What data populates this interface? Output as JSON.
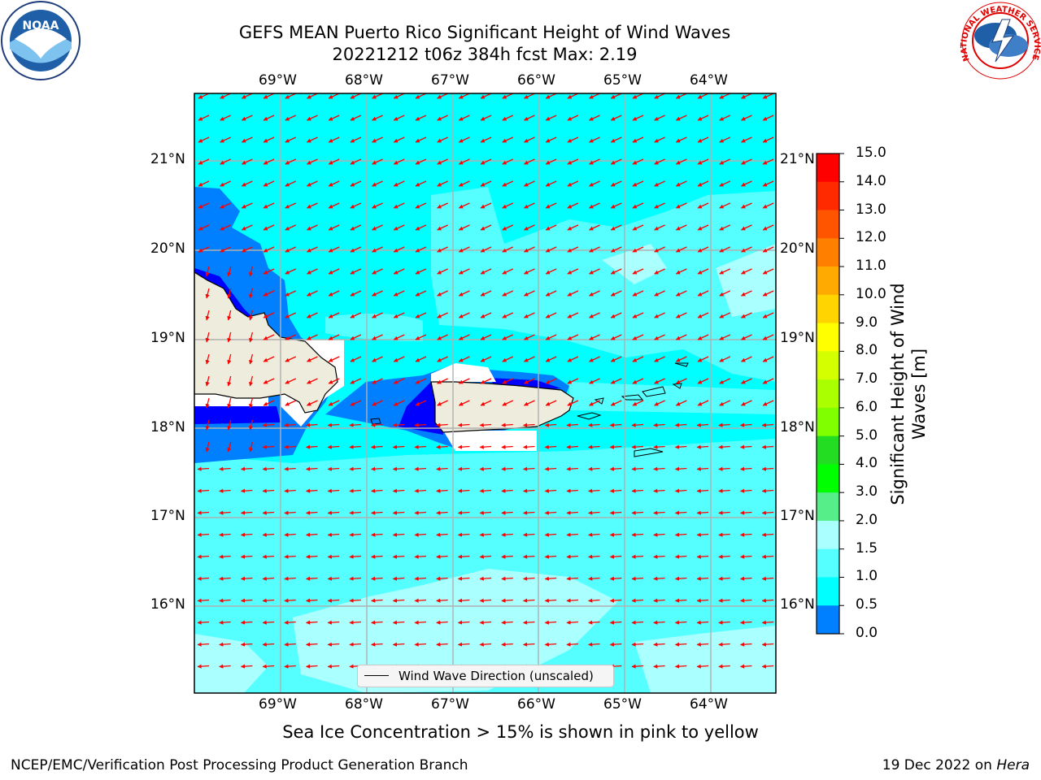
{
  "title_line1": "GEFS MEAN Puerto Rico Significant Height of Wind Waves",
  "title_line2": "20221212 t06z 384h fcst   Max: 2.19",
  "logos": {
    "left": {
      "icon": "noaa-logo",
      "text": "NOAA"
    },
    "right": {
      "icon": "nws-logo",
      "text": "NATIONAL WEATHER SERVICE"
    }
  },
  "longitude_labels": [
    "69°W",
    "68°W",
    "67°W",
    "66°W",
    "65°W",
    "64°W"
  ],
  "latitude_labels": [
    "21°N",
    "20°N",
    "19°N",
    "18°N",
    "17°N",
    "16°N"
  ],
  "legend": {
    "label": "Wind Wave Direction (unscaled)"
  },
  "colorbar": {
    "label": "Significant Height of Wind Waves [m]",
    "ticks": [
      "15.0",
      "14.0",
      "13.0",
      "12.0",
      "11.0",
      "10.0",
      "9.0",
      "8.0",
      "7.0",
      "6.0",
      "5.0",
      "4.0",
      "3.0",
      "2.0",
      "1.5",
      "1.0",
      "0.5",
      "0.0"
    ],
    "colors": [
      "#ff0000",
      "#ff2a00",
      "#ff5500",
      "#ff8000",
      "#ffaa00",
      "#ffd400",
      "#ffff00",
      "#d4ff00",
      "#aaff00",
      "#80ff00",
      "#22dd22",
      "#00ff00",
      "#55ee88",
      "#aaffff",
      "#55ffff",
      "#00ffff",
      "#0080ff",
      "#0000ff"
    ]
  },
  "note": "Sea Ice Concentration > 15% is shown in pink to yellow",
  "footer_left": "NCEP/EMC/Verification Post Processing Product Generation Branch",
  "footer_right_prefix": "19 Dec 2022 on ",
  "footer_right_host": "Hera",
  "colors": {
    "land": "#eeecdc",
    "arrow": "#ff0000",
    "grid": "#b0b0b0"
  }
}
